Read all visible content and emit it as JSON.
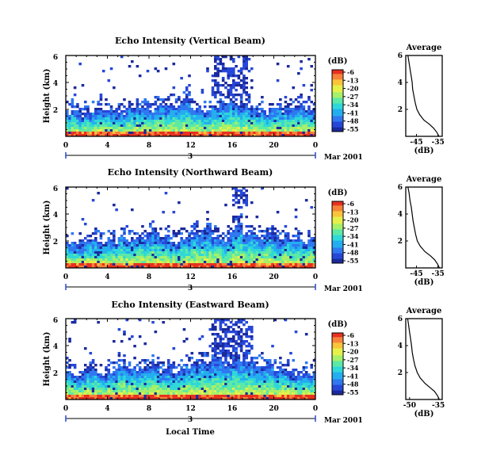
{
  "xlabel": "Local Time",
  "date_label": "3",
  "month_label": "Mar 2001",
  "colorbar": {
    "label": "(dB)",
    "ticks": [
      "-6",
      "-13",
      "-20",
      "-27",
      "-34",
      "-41",
      "-48",
      "-55"
    ]
  },
  "palette": [
    "#1b2a9c",
    "#2647d8",
    "#2f78f0",
    "#23aef0",
    "#2fd8d8",
    "#5ce9a6",
    "#a6f06a",
    "#e6f04a",
    "#f9c43a",
    "#f7833a",
    "#e83020"
  ],
  "chart_data": [
    {
      "type": "heatmap",
      "title": "Echo Intensity (Vertical Beam)",
      "ylabel": "Height (km)",
      "xlim": [
        0,
        24
      ],
      "ylim": [
        0,
        6
      ],
      "x_ticks": [
        "0",
        "4",
        "8",
        "12",
        "16",
        "20",
        "0"
      ],
      "y_ticks": [
        "2",
        "4",
        "6"
      ],
      "zlim": [
        -55,
        -6
      ],
      "description_values": {
        "boundary_layer_top_km": [
          1.8,
          1.6,
          1.7,
          1.9,
          1.8,
          1.7,
          2.2,
          2.1,
          2.0,
          2.3,
          2.4,
          2.6,
          2.1,
          1.9,
          2.2,
          2.5,
          2.4,
          2.2,
          2.0,
          1.8,
          1.9,
          2.0,
          2.1,
          2.0,
          1.9
        ],
        "upper_echo_region": {
          "x_range": [
            14,
            17.5
          ],
          "y_range": [
            3.0,
            6.0
          ]
        }
      }
    },
    {
      "type": "line",
      "title": "Average",
      "xlabel": "(dB)",
      "x_ticks": [
        "-45",
        "-35"
      ],
      "y_ticks": [
        "2",
        "4",
        "6"
      ],
      "xlim": [
        -50,
        -33
      ],
      "ylim": [
        0,
        6
      ],
      "x": [
        -49.0,
        -48.6,
        -48.0,
        -47.5,
        -47.0,
        -46.8,
        -46.2,
        -45.6,
        -44.8,
        -43.5,
        -41.5,
        -39.0,
        -37.0,
        -35.5,
        -34.5
      ],
      "y": [
        6.0,
        5.6,
        5.0,
        4.5,
        4.0,
        3.5,
        3.0,
        2.5,
        2.0,
        1.6,
        1.2,
        0.9,
        0.6,
        0.3,
        0.0
      ]
    },
    {
      "type": "heatmap",
      "title": "Echo Intensity (Northward Beam)",
      "ylabel": "Height (km)",
      "xlim": [
        0,
        24
      ],
      "ylim": [
        0,
        6
      ],
      "x_ticks": [
        "0",
        "4",
        "8",
        "12",
        "16",
        "20",
        "0"
      ],
      "y_ticks": [
        "2",
        "4",
        "6"
      ],
      "zlim": [
        -55,
        -6
      ],
      "description_values": {
        "boundary_layer_top_km": [
          1.9,
          1.7,
          2.2,
          1.8,
          2.0,
          2.3,
          2.1,
          2.4,
          2.6,
          2.2,
          2.0,
          2.3,
          2.5,
          2.7,
          2.4,
          2.2,
          3.0,
          2.6,
          2.4,
          2.5,
          2.3,
          2.2,
          2.1,
          2.0,
          1.9
        ],
        "upper_echo_region": {
          "x_range": [
            16,
            17.5
          ],
          "y_range": [
            4.5,
            6.0
          ]
        }
      }
    },
    {
      "type": "line",
      "title": "Average",
      "xlabel": "(dB)",
      "x_ticks": [
        "-45",
        "-35"
      ],
      "y_ticks": [
        "2",
        "4",
        "6"
      ],
      "xlim": [
        -50,
        -33
      ],
      "ylim": [
        0,
        6
      ],
      "x": [
        -49.0,
        -48.5,
        -48.0,
        -47.4,
        -47.0,
        -46.6,
        -46.0,
        -45.4,
        -44.6,
        -43.2,
        -41.0,
        -38.5,
        -36.5,
        -35.2,
        -34.3
      ],
      "y": [
        6.0,
        5.6,
        5.0,
        4.5,
        4.0,
        3.5,
        3.0,
        2.5,
        2.0,
        1.6,
        1.2,
        0.9,
        0.6,
        0.3,
        0.0
      ]
    },
    {
      "type": "heatmap",
      "title": "Echo Intensity (Eastward Beam)",
      "ylabel": "Height (km)",
      "xlim": [
        0,
        24
      ],
      "ylim": [
        0,
        6
      ],
      "x_ticks": [
        "0",
        "4",
        "8",
        "12",
        "16",
        "20",
        "0"
      ],
      "y_ticks": [
        "2",
        "4",
        "6"
      ],
      "zlim": [
        -55,
        -6
      ],
      "description_values": {
        "boundary_layer_top_km": [
          2.0,
          1.8,
          2.3,
          1.9,
          2.1,
          2.4,
          2.2,
          2.3,
          2.5,
          2.2,
          2.1,
          2.4,
          2.6,
          2.8,
          2.9,
          2.6,
          2.8,
          2.7,
          2.5,
          2.4,
          2.2,
          2.1,
          2.0,
          1.9,
          1.8
        ],
        "upper_echo_region": {
          "x_range": [
            14,
            18
          ],
          "y_range": [
            3.0,
            6.0
          ]
        }
      }
    },
    {
      "type": "line",
      "title": "Average",
      "xlabel": "(dB)",
      "x_ticks": [
        "-50",
        "-35"
      ],
      "y_ticks": [
        "2",
        "4",
        "6"
      ],
      "xlim": [
        -52,
        -33
      ],
      "ylim": [
        0,
        6
      ],
      "x": [
        -51.0,
        -50.6,
        -50.0,
        -49.5,
        -49.0,
        -48.6,
        -48.0,
        -47.2,
        -46.0,
        -44.5,
        -42.0,
        -39.5,
        -37.0,
        -35.5,
        -34.5
      ],
      "y": [
        6.0,
        5.6,
        5.0,
        4.5,
        4.0,
        3.5,
        3.0,
        2.5,
        2.0,
        1.6,
        1.2,
        0.9,
        0.6,
        0.3,
        0.0
      ]
    }
  ]
}
